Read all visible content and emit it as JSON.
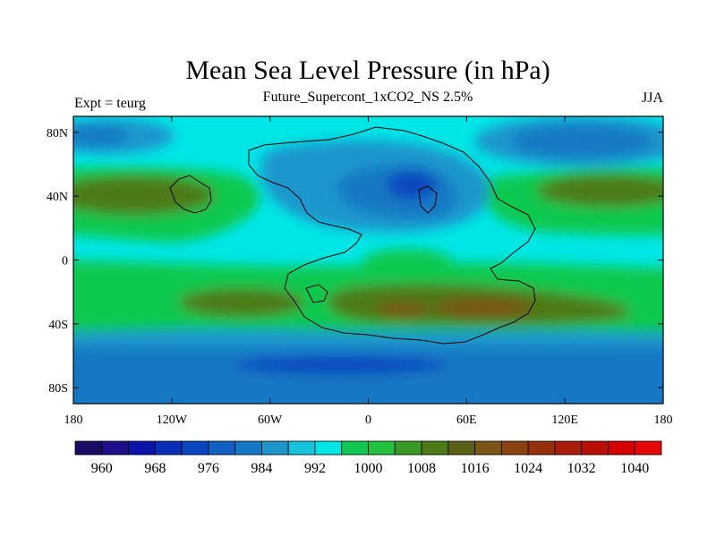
{
  "chart_data": {
    "type": "heatmap",
    "title": "Mean Sea Level Pressure (in hPa)",
    "subtitle": "Future_Supercont_1xCO2_NS 2.5%",
    "left_label": "Expt = teurg",
    "right_label": "JJA",
    "xlabel": "",
    "ylabel": "",
    "xlim": [
      -180,
      180
    ],
    "ylim": [
      -90,
      90
    ],
    "x_ticks": [
      {
        "value": -180,
        "label": "180"
      },
      {
        "value": -120,
        "label": "120W"
      },
      {
        "value": -60,
        "label": "60W"
      },
      {
        "value": 0,
        "label": "0"
      },
      {
        "value": 60,
        "label": "60E"
      },
      {
        "value": 120,
        "label": "120E"
      },
      {
        "value": 180,
        "label": "180"
      }
    ],
    "y_ticks": [
      {
        "value": 80,
        "label": "80N"
      },
      {
        "value": 40,
        "label": "40N"
      },
      {
        "value": 0,
        "label": "0"
      },
      {
        "value": -40,
        "label": "40S"
      },
      {
        "value": -80,
        "label": "80S"
      }
    ],
    "colorbar": {
      "levels": [
        960,
        964,
        968,
        972,
        976,
        980,
        984,
        988,
        992,
        996,
        1000,
        1004,
        1008,
        1012,
        1016,
        1020,
        1024,
        1028,
        1032,
        1036,
        1040
      ],
      "labeled_levels": [
        "960",
        "968",
        "976",
        "984",
        "992",
        "1000",
        "1008",
        "1016",
        "1024",
        "1032",
        "1040"
      ],
      "colors": [
        "#1a0b64",
        "#1d0e8a",
        "#0a14a8",
        "#0a2db8",
        "#0a46c0",
        "#1060c4",
        "#1478c4",
        "#1e96cc",
        "#18c4dc",
        "#00e6e6",
        "#10c850",
        "#24c040",
        "#3a9a28",
        "#4d7a18",
        "#5a6018",
        "#7a5418",
        "#8a4210",
        "#96300c",
        "#a81c0c",
        "#b80e0a",
        "#d40000",
        "#e40808"
      ]
    },
    "field_description": "Time-mean JJA sea level pressure with a central supercontinent outlined"
  }
}
